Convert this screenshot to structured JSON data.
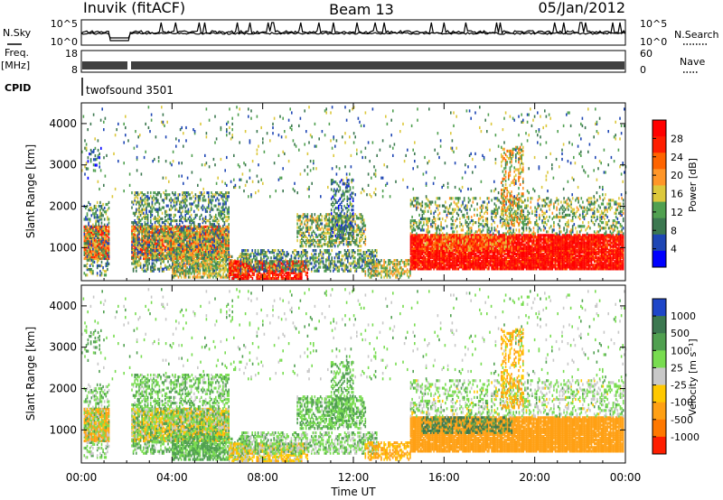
{
  "header": {
    "site": "Inuvik (fitACF)",
    "beam": "Beam 13",
    "date": "05/Jan/2012"
  },
  "status_panels": {
    "nsky_label": "N.Sky",
    "nsky_ticks": [
      "10^5",
      "10^0"
    ],
    "nsearch_label": "N.Search",
    "nsearch_ticks": [
      "10^5",
      "10^0"
    ],
    "freq_label": "Freq.",
    "freq_unit": "[MHz]",
    "freq_ticks": [
      "18",
      "8"
    ],
    "nave_label": "Nave",
    "nave_ticks": [
      "60",
      "0"
    ],
    "cpid_label": "CPID",
    "cpid_value": "twofsound 3501"
  },
  "colors": {
    "power_scale": [
      "#0000ff",
      "#1e46b4",
      "#3c7850",
      "#50a050",
      "#dcc83c",
      "#ff9628",
      "#ff6400",
      "#ff1e00",
      "#ff0000"
    ],
    "velocity_scale": [
      "#1e46c8",
      "#3c7850",
      "#50a050",
      "#78dc50",
      "#c8c8c8",
      "#ffc800",
      "#ffa014",
      "#ff7800",
      "#ff1e00"
    ]
  },
  "chart_data": [
    {
      "type": "heatmap",
      "name": "power",
      "ylabel": "Slant Range [km]",
      "yticks": [
        1000,
        2000,
        3000,
        4000
      ],
      "ylim": [
        200,
        4500
      ],
      "colorbar_label": "Power [dB]",
      "colorbar_ticks": [
        "28",
        "24",
        "20",
        "16",
        "12",
        "8",
        "4"
      ],
      "clim": [
        0,
        30
      ]
    },
    {
      "type": "heatmap",
      "name": "velocity",
      "ylabel": "Slant Range [km]",
      "yticks": [
        1000,
        2000,
        3000,
        4000
      ],
      "ylim": [
        200,
        4500
      ],
      "colorbar_label": "Velocity [m s⁻¹]",
      "colorbar_ticks": [
        "1000",
        "500",
        "100",
        "25",
        "-25",
        "-100",
        "-500",
        "-1000"
      ],
      "clim": [
        -1000,
        1000
      ]
    }
  ],
  "x_axis": {
    "label": "Time UT",
    "ticks": [
      "00:00",
      "04:00",
      "08:00",
      "12:00",
      "16:00",
      "20:00",
      "00:00"
    ],
    "range_hours": [
      0,
      24
    ]
  },
  "blobs": [
    {
      "t0": 0.1,
      "t1": 1.2,
      "r0": 700,
      "r1": 1500,
      "p": 22,
      "v": -150,
      "d": 0.9
    },
    {
      "t0": 0.1,
      "t1": 1.2,
      "r0": 300,
      "r1": 2100,
      "p": 10,
      "v": 60,
      "d": 0.35
    },
    {
      "t0": 0.2,
      "t1": 1.0,
      "r0": 2600,
      "r1": 3400,
      "p": 6,
      "v": 300,
      "d": 0.1
    },
    {
      "t0": 2.2,
      "t1": 6.5,
      "r0": 700,
      "r1": 1500,
      "p": 20,
      "v": -60,
      "d": 0.85
    },
    {
      "t0": 2.2,
      "t1": 6.5,
      "r0": 400,
      "r1": 2300,
      "p": 10,
      "v": 80,
      "d": 0.4
    },
    {
      "t0": 4.0,
      "t1": 7.5,
      "r0": 250,
      "r1": 800,
      "p": 14,
      "v": 120,
      "d": 0.55
    },
    {
      "t0": 6.5,
      "t1": 10.0,
      "r0": 220,
      "r1": 650,
      "p": 26,
      "v": -40,
      "d": 0.75
    },
    {
      "t0": 7.0,
      "t1": 13.0,
      "r0": 400,
      "r1": 900,
      "p": 10,
      "v": 60,
      "d": 0.45
    },
    {
      "t0": 9.5,
      "t1": 12.5,
      "r0": 1000,
      "r1": 1800,
      "p": 12,
      "v": 90,
      "d": 0.5
    },
    {
      "t0": 11.0,
      "t1": 12.0,
      "r0": 1200,
      "r1": 2600,
      "p": 8,
      "v": 100,
      "d": 0.35
    },
    {
      "t0": 12.5,
      "t1": 14.5,
      "r0": 250,
      "r1": 700,
      "p": 14,
      "v": -120,
      "d": 0.5
    },
    {
      "t0": 14.5,
      "t1": 23.9,
      "r0": 450,
      "r1": 1300,
      "p": 28,
      "v": -200,
      "d": 0.92
    },
    {
      "t0": 14.5,
      "t1": 23.9,
      "r0": 1300,
      "r1": 2200,
      "p": 12,
      "v": 40,
      "d": 0.3
    },
    {
      "t0": 15.0,
      "t1": 19.0,
      "r0": 900,
      "r1": 1300,
      "p": 20,
      "v": 600,
      "d": 0.4
    },
    {
      "t0": 18.5,
      "t1": 19.5,
      "r0": 1500,
      "r1": 3400,
      "p": 16,
      "v": -100,
      "d": 0.35
    },
    {
      "t0": 0.0,
      "t1": 24.0,
      "r0": 2200,
      "r1": 4400,
      "p": 10,
      "v": 50,
      "d": 0.03
    }
  ]
}
